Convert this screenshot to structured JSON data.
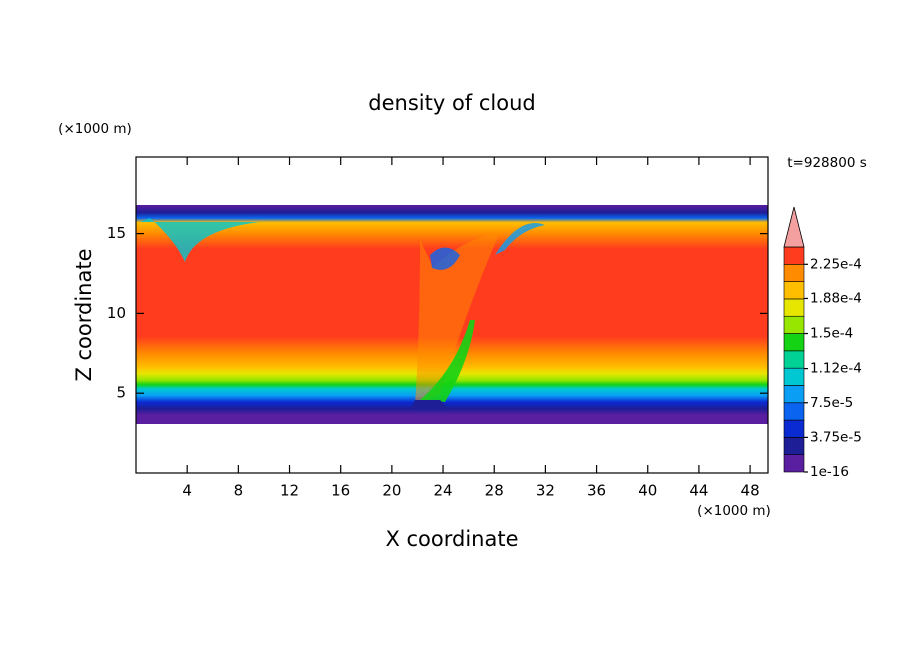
{
  "chart_data": {
    "type": "contour",
    "title": "density of cloud",
    "x_label": "X coordinate",
    "y_label": "Z coordinate",
    "x_unit": "(×1000 m)",
    "y_unit": "(×1000 m)",
    "annotation": "t=928800 s",
    "xlim": [
      0,
      49.4
    ],
    "ylim": [
      0,
      19.8
    ],
    "xticks": [
      4,
      8,
      12,
      16,
      20,
      24,
      28,
      32,
      36,
      40,
      44,
      48
    ],
    "yticks": [
      5,
      10,
      15
    ],
    "colorbar": {
      "lim": [
        1e-16,
        0.00024375
      ],
      "ticks": [
        {
          "value": 1e-16,
          "label": "1e-16"
        },
        {
          "value": 3.75e-05,
          "label": "3.75e-5"
        },
        {
          "value": 7.5e-05,
          "label": "7.5e-5"
        },
        {
          "value": 0.000112,
          "label": "1.12e-4"
        },
        {
          "value": 0.00015,
          "label": "1.5e-4"
        },
        {
          "value": 0.000188,
          "label": "1.88e-4"
        },
        {
          "value": 0.000225,
          "label": "2.25e-4"
        }
      ],
      "colors": [
        "#5a1ea0",
        "#1e1e96",
        "#0a2ad2",
        "#0a64f0",
        "#0a9ef5",
        "#00c8d2",
        "#00d296",
        "#14d214",
        "#96e600",
        "#e6e600",
        "#ffbe00",
        "#ff8c00",
        "#ff3c1e"
      ],
      "extend_color": "#f5a0a0"
    }
  }
}
